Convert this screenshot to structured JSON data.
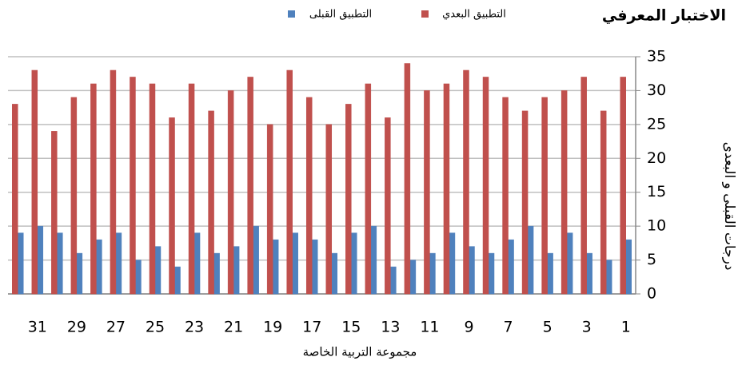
{
  "chart_data": {
    "type": "bar",
    "title": "الاختبار المعرفي",
    "x_label": "مجموعة التربية الخاصة",
    "y_label": "درجات القبلى و البعدى",
    "categories": [
      "1",
      null,
      "3",
      null,
      "5",
      null,
      "7",
      null,
      "9",
      null,
      "11",
      null,
      "13",
      null,
      "15",
      null,
      "17",
      null,
      "19",
      null,
      "21",
      null,
      "23",
      null,
      "25",
      null,
      "27",
      null,
      "29",
      null,
      "31",
      null
    ],
    "x_reversed": true,
    "y_axis_side": "right",
    "series": [
      {
        "name": "التطبيق القبلى",
        "color": "#4f81bd",
        "values": [
          8,
          5,
          6,
          9,
          6,
          10,
          8,
          6,
          7,
          9,
          6,
          5,
          4,
          10,
          9,
          6,
          8,
          9,
          8,
          10,
          7,
          6,
          9,
          4,
          7,
          5,
          9,
          8,
          6,
          9,
          10,
          9
        ]
      },
      {
        "name": "التطبيق البعدي",
        "color": "#c0504d",
        "values": [
          32,
          27,
          32,
          30,
          29,
          27,
          29,
          32,
          33,
          31,
          30,
          34,
          26,
          31,
          28,
          25,
          29,
          33,
          25,
          32,
          30,
          27,
          31,
          26,
          31,
          32,
          33,
          31,
          29,
          24,
          33,
          28
        ]
      }
    ],
    "ylim": [
      0,
      35
    ],
    "yticks": [
      0,
      5,
      10,
      15,
      20,
      25,
      30,
      35
    ],
    "grid": true,
    "legend": "top"
  }
}
